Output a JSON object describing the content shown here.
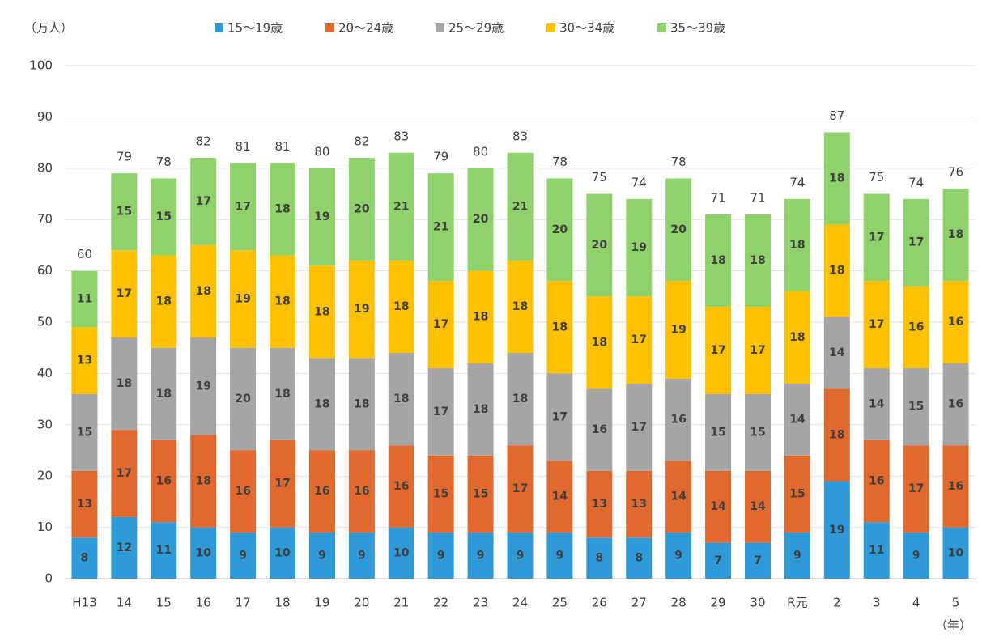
{
  "chart_data": {
    "type": "stacked_bar",
    "unit_label": "（万人）",
    "x_unit_label": "（年）",
    "categories": [
      "H13",
      "14",
      "15",
      "16",
      "17",
      "18",
      "19",
      "20",
      "21",
      "22",
      "23",
      "24",
      "25",
      "26",
      "27",
      "28",
      "29",
      "30",
      "R元",
      "2",
      "3",
      "4",
      "5"
    ],
    "series": [
      {
        "name": "15～19歳",
        "color": "#2e9bd8",
        "values": [
          8,
          12,
          11,
          10,
          9,
          10,
          9,
          9,
          10,
          9,
          9,
          9,
          9,
          8,
          8,
          9,
          7,
          7,
          9,
          19,
          11,
          9,
          10
        ]
      },
      {
        "name": "20～24歳",
        "color": "#e2692e",
        "values": [
          13,
          17,
          16,
          18,
          16,
          17,
          16,
          16,
          16,
          15,
          15,
          17,
          14,
          13,
          13,
          14,
          14,
          14,
          15,
          18,
          16,
          17,
          16
        ]
      },
      {
        "name": "25～29歳",
        "color": "#a5a5a5",
        "values": [
          15,
          18,
          18,
          19,
          20,
          18,
          18,
          18,
          18,
          17,
          18,
          18,
          17,
          16,
          17,
          16,
          15,
          15,
          14,
          14,
          14,
          15,
          16
        ]
      },
      {
        "name": "30～34歳",
        "color": "#ffc000",
        "values": [
          13,
          17,
          18,
          18,
          19,
          18,
          18,
          19,
          18,
          17,
          18,
          18,
          18,
          18,
          17,
          19,
          17,
          17,
          18,
          18,
          17,
          16,
          16
        ]
      },
      {
        "name": "35～39歳",
        "color": "#8fd16a",
        "values": [
          11,
          15,
          15,
          17,
          17,
          18,
          19,
          20,
          21,
          21,
          20,
          21,
          20,
          20,
          19,
          20,
          18,
          18,
          18,
          18,
          17,
          17,
          18
        ]
      }
    ],
    "totals": [
      60,
      79,
      78,
      82,
      81,
      81,
      80,
      82,
      83,
      79,
      80,
      83,
      78,
      75,
      74,
      78,
      71,
      71,
      74,
      87,
      75,
      74,
      76
    ],
    "ylim": [
      0,
      100
    ],
    "yticks": [
      0,
      10,
      20,
      30,
      40,
      50,
      60,
      70,
      80,
      90,
      100
    ],
    "grid": true
  }
}
